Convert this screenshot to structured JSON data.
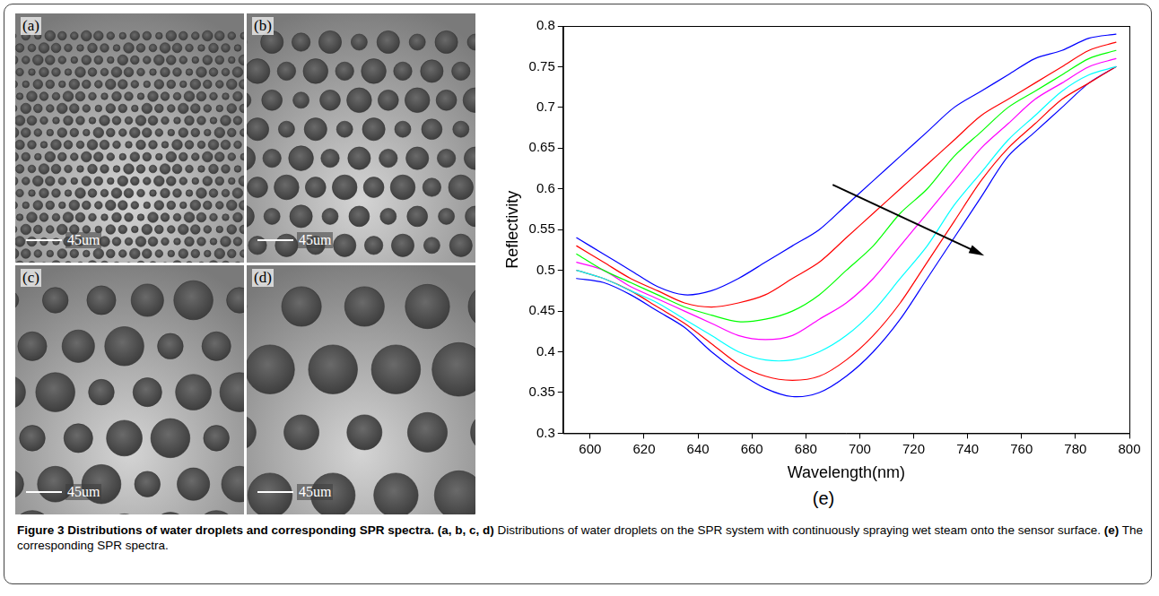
{
  "figure": {
    "panels": [
      {
        "label": "(a)",
        "scale_bar": "45um"
      },
      {
        "label": "(b)",
        "scale_bar": "45um"
      },
      {
        "label": "(c)",
        "scale_bar": "45um"
      },
      {
        "label": "(d)",
        "scale_bar": "45um"
      }
    ],
    "chart_label": "(e)",
    "caption": {
      "title": "Figure 3 Distributions of water droplets and corresponding SPR spectra.",
      "items": [
        {
          "label": "(a, b, c, d)",
          "text": "Distributions of water droplets on the SPR system with continuously spraying wet steam onto the sensor surface."
        },
        {
          "label": "(e)",
          "text": "The corresponding SPR spectra."
        }
      ]
    }
  },
  "chart_data": {
    "type": "line",
    "x_label": "Wavelength(nm)",
    "y_label": "Reflectivity",
    "x": [
      595,
      605,
      615,
      625,
      635,
      645,
      655,
      665,
      675,
      685,
      695,
      705,
      715,
      725,
      735,
      745,
      755,
      765,
      775,
      785,
      795
    ],
    "series": [
      {
        "color": "#0000ff",
        "values": [
          0.54,
          0.52,
          0.5,
          0.48,
          0.47,
          0.475,
          0.49,
          0.51,
          0.53,
          0.55,
          0.58,
          0.61,
          0.64,
          0.67,
          0.7,
          0.72,
          0.74,
          0.76,
          0.77,
          0.785,
          0.79
        ]
      },
      {
        "color": "#ff0000",
        "values": [
          0.53,
          0.51,
          0.49,
          0.475,
          0.46,
          0.455,
          0.46,
          0.47,
          0.49,
          0.51,
          0.54,
          0.57,
          0.6,
          0.63,
          0.66,
          0.69,
          0.71,
          0.73,
          0.75,
          0.77,
          0.78
        ]
      },
      {
        "color": "#00ff00",
        "values": [
          0.52,
          0.5,
          0.485,
          0.47,
          0.455,
          0.445,
          0.437,
          0.44,
          0.45,
          0.47,
          0.5,
          0.53,
          0.57,
          0.6,
          0.64,
          0.67,
          0.7,
          0.72,
          0.74,
          0.76,
          0.77
        ]
      },
      {
        "color": "#ff00ff",
        "values": [
          0.51,
          0.5,
          0.48,
          0.465,
          0.45,
          0.435,
          0.42,
          0.415,
          0.42,
          0.44,
          0.46,
          0.49,
          0.53,
          0.57,
          0.61,
          0.65,
          0.68,
          0.71,
          0.73,
          0.75,
          0.76
        ]
      },
      {
        "color": "#00ffff",
        "values": [
          0.5,
          0.49,
          0.475,
          0.46,
          0.44,
          0.42,
          0.4,
          0.39,
          0.39,
          0.4,
          0.42,
          0.45,
          0.49,
          0.53,
          0.58,
          0.62,
          0.66,
          0.69,
          0.72,
          0.74,
          0.75
        ]
      },
      {
        "color": "#ff0000",
        "values": [
          0.5,
          0.49,
          0.475,
          0.455,
          0.435,
          0.41,
          0.385,
          0.37,
          0.365,
          0.37,
          0.39,
          0.42,
          0.46,
          0.51,
          0.56,
          0.61,
          0.65,
          0.68,
          0.71,
          0.73,
          0.75
        ]
      },
      {
        "color": "#0000ff",
        "values": [
          0.49,
          0.485,
          0.47,
          0.45,
          0.43,
          0.4,
          0.375,
          0.355,
          0.345,
          0.35,
          0.37,
          0.4,
          0.44,
          0.49,
          0.54,
          0.59,
          0.64,
          0.67,
          0.7,
          0.73,
          0.75
        ]
      }
    ],
    "xlim": [
      590,
      800
    ],
    "ylim": [
      0.3,
      0.8
    ],
    "xticks": [
      600,
      620,
      640,
      660,
      680,
      700,
      720,
      740,
      760,
      780,
      800
    ],
    "yticks": [
      0.3,
      0.35,
      0.4,
      0.45,
      0.5,
      0.55,
      0.6,
      0.65,
      0.7,
      0.75,
      0.8
    ],
    "grid": false
  }
}
